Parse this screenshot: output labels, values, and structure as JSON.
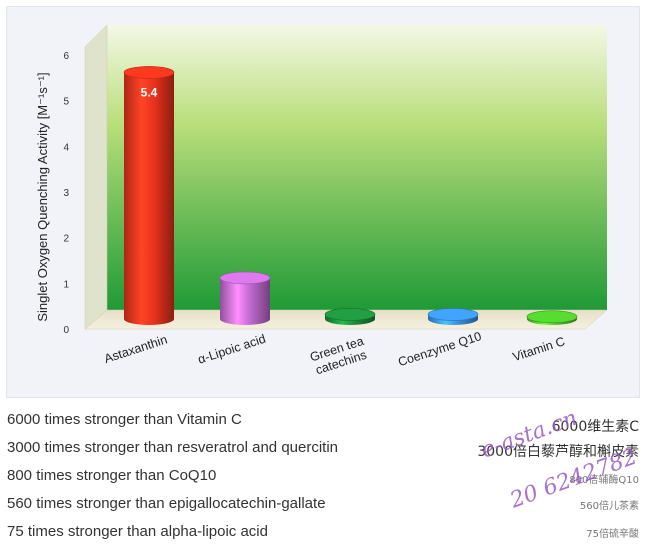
{
  "chart_data": {
    "type": "bar",
    "categories": [
      "Astaxanthin",
      "α-Lipoic acid",
      "Green tea catechins",
      "Coenzyme Q10",
      "Vitamin C"
    ],
    "category_lines": [
      [
        "Astaxanthin"
      ],
      [
        "α-Lipoic acid"
      ],
      [
        "Green tea",
        "catechins"
      ],
      [
        "Coenzyme Q10"
      ],
      [
        "Vitamin C"
      ]
    ],
    "values": [
      5.4,
      0.9,
      0.1,
      0.1,
      0.05
    ],
    "value_labels": [
      "5.4",
      "",
      "",
      "",
      ""
    ],
    "ylabel": "Singlet Oxygen Quenching Activity  [M⁻¹s⁻¹]",
    "yticks": [
      "0",
      "1",
      "2",
      "3",
      "4",
      "5",
      "6"
    ],
    "ylim": [
      0,
      6
    ],
    "colors": [
      "#e8321c",
      "#c06ad0",
      "#1e8a3a",
      "#3a8fe0",
      "#4cbf2a"
    ]
  },
  "statements": [
    "6000 times stronger than Vitamin C",
    "3000 times stronger than resveratrol and quercitin",
    "800 times stronger than CoQ10",
    "560 times stronger than epigallocatechin-gallate",
    "75 times stronger than alpha-lipoic acid"
  ],
  "cn_labels": [
    "6000维生素C",
    "3000倍白藜芦醇和槲皮素",
    "800倍辅酶Q10",
    "560倍儿茶素",
    "75倍硫辛酸"
  ],
  "watermark": {
    "line1": "e-asta.cn",
    "line2": "20 6242782"
  }
}
